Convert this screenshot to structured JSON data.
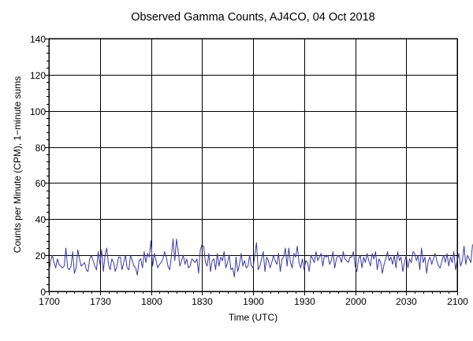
{
  "chart_data": {
    "type": "line",
    "title": "Observed Gamma Counts, AJ4CO, 04 Oct 2018",
    "xlabel": "Time (UTC)",
    "ylabel": "Counts per Minute (CPM), 1−minute sums",
    "x_tick_labels": [
      "1700",
      "1730",
      "1800",
      "1830",
      "1900",
      "1930",
      "2000",
      "2030",
      "2100"
    ],
    "y_ticks": [
      0,
      20,
      40,
      60,
      80,
      100,
      120,
      140
    ],
    "xlim_minutes": [
      0,
      240
    ],
    "ylim": [
      0,
      140
    ],
    "grid": true,
    "series": [
      {
        "color": "#3a3aa0",
        "x_start": "1700",
        "x_step_minutes": 1,
        "values": [
          10,
          17,
          20,
          16,
          13,
          18,
          15,
          14,
          13,
          14,
          24,
          13,
          12,
          14,
          22,
          10,
          13,
          23,
          18,
          14,
          15,
          16,
          12,
          11,
          18,
          20,
          17,
          14,
          12,
          22,
          15,
          23,
          11,
          20,
          24,
          15,
          12,
          18,
          16,
          11,
          14,
          19,
          19,
          12,
          16,
          20,
          13,
          12,
          20,
          17,
          14,
          13,
          9,
          17,
          18,
          13,
          22,
          16,
          21,
          19,
          28,
          14,
          21,
          17,
          13,
          15,
          16,
          18,
          22,
          19,
          14,
          12,
          19,
          29,
          17,
          29,
          22,
          14,
          17,
          20,
          15,
          18,
          13,
          14,
          18,
          17,
          16,
          18,
          10,
          23,
          26,
          25,
          16,
          14,
          21,
          11,
          17,
          18,
          12,
          21,
          14,
          19,
          17,
          22,
          13,
          16,
          20,
          12,
          13,
          8,
          19,
          11,
          15,
          21,
          14,
          17,
          13,
          14,
          20,
          14,
          13,
          20,
          27,
          12,
          14,
          18,
          22,
          11,
          19,
          17,
          13,
          16,
          20,
          17,
          15,
          21,
          11,
          18,
          19,
          24,
          14,
          24,
          16,
          13,
          21,
          19,
          25,
          16,
          13,
          18,
          12,
          17,
          16,
          11,
          20,
          18,
          16,
          22,
          17,
          19,
          21,
          14,
          20,
          19,
          20,
          15,
          17,
          22,
          13,
          18,
          20,
          19,
          16,
          22,
          18,
          17,
          16,
          19,
          19,
          22,
          14,
          11,
          18,
          20,
          13,
          19,
          16,
          21,
          17,
          14,
          21,
          18,
          22,
          12,
          18,
          16,
          10,
          15,
          18,
          22,
          17,
          19,
          15,
          20,
          13,
          22,
          17,
          19,
          11,
          16,
          20,
          13,
          18,
          16,
          22,
          21,
          17,
          20,
          12,
          24,
          16,
          19,
          10,
          17,
          19,
          15,
          18,
          21,
          17,
          14,
          13,
          17,
          20,
          16,
          21,
          14,
          19,
          16,
          22,
          12,
          17,
          21,
          14,
          17,
          25,
          15,
          20,
          18,
          16,
          26
        ]
      }
    ]
  }
}
